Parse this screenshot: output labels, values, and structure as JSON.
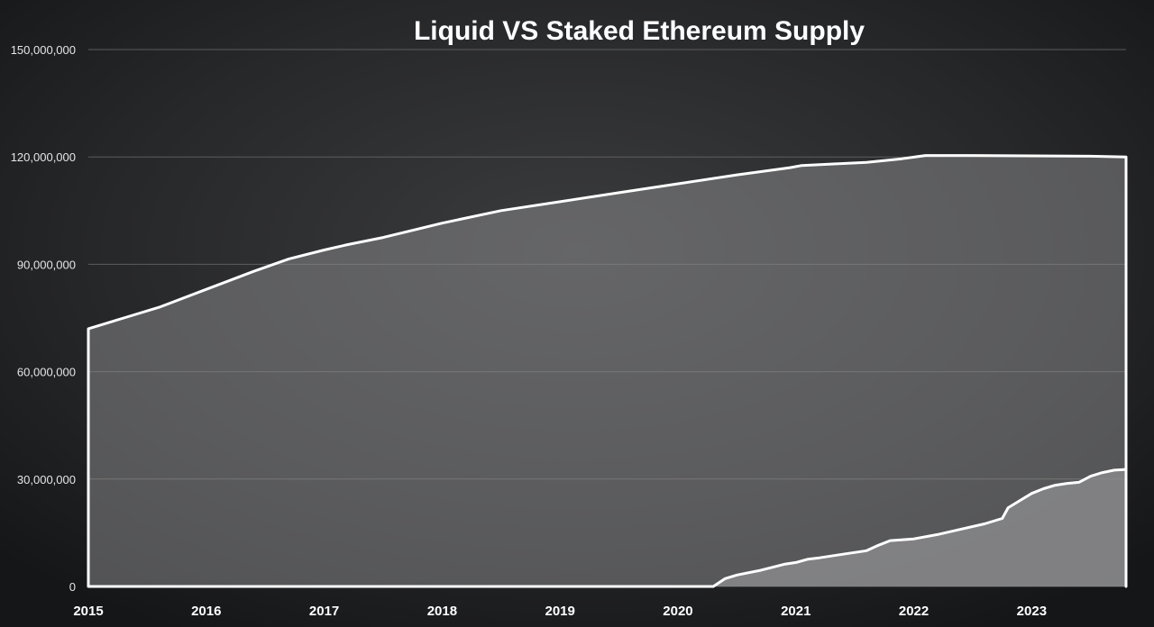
{
  "chart_data": {
    "type": "area",
    "title": "Liquid VS Staked Ethereum Supply",
    "xlabel": "",
    "ylabel": "",
    "x_tick_labels": [
      "2015",
      "2016",
      "2017",
      "2018",
      "2019",
      "2020",
      "2021",
      "2022",
      "2023"
    ],
    "y_tick_labels": [
      "0",
      "30,000,000",
      "60,000,000",
      "90,000,000",
      "120,000,000",
      "150,000,000"
    ],
    "ylim": [
      0,
      150000000
    ],
    "xlim": [
      2015.0,
      2023.8
    ],
    "grid": true,
    "legend": "none",
    "colors": {
      "background": "#1f2021",
      "area_fill": "#8f8f92",
      "area_fill_opacity": 0.5,
      "line": "#ffffff",
      "grid": "#6a6a6a",
      "text": "#ffffff"
    },
    "series": [
      {
        "x": [
          2015.0,
          2015.3,
          2015.6,
          2016.0,
          2016.4,
          2016.7,
          2017.0,
          2017.2,
          2017.5,
          2018.0,
          2018.5,
          2019.0,
          2019.5,
          2020.0,
          2020.5,
          2020.95,
          2021.05,
          2021.3,
          2021.6,
          2021.9,
          2022.1,
          2022.5,
          2023.0,
          2023.5,
          2023.8
        ],
        "values": [
          72000000,
          75000000,
          78000000,
          83000000,
          88000000,
          91500000,
          94000000,
          95500000,
          97500000,
          101500000,
          105000000,
          107500000,
          110000000,
          112500000,
          115000000,
          117000000,
          117600000,
          118000000,
          118500000,
          119500000,
          120400000,
          120400000,
          120300000,
          120200000,
          120000000
        ]
      },
      {
        "x": [
          2020.3,
          2020.4,
          2020.5,
          2020.7,
          2020.9,
          2021.0,
          2021.1,
          2021.2,
          2021.4,
          2021.6,
          2021.7,
          2021.8,
          2022.0,
          2022.2,
          2022.4,
          2022.6,
          2022.75,
          2022.8,
          2022.9,
          2023.0,
          2023.1,
          2023.2,
          2023.3,
          2023.4,
          2023.5,
          2023.6,
          2023.7,
          2023.8
        ],
        "values": [
          0,
          2200000,
          3200000,
          4500000,
          6200000,
          6700000,
          7600000,
          8000000,
          9000000,
          10000000,
          11500000,
          12800000,
          13300000,
          14500000,
          16000000,
          17500000,
          19000000,
          22000000,
          24000000,
          26000000,
          27300000,
          28300000,
          28800000,
          29100000,
          30800000,
          31800000,
          32500000,
          32700000
        ]
      }
    ]
  }
}
